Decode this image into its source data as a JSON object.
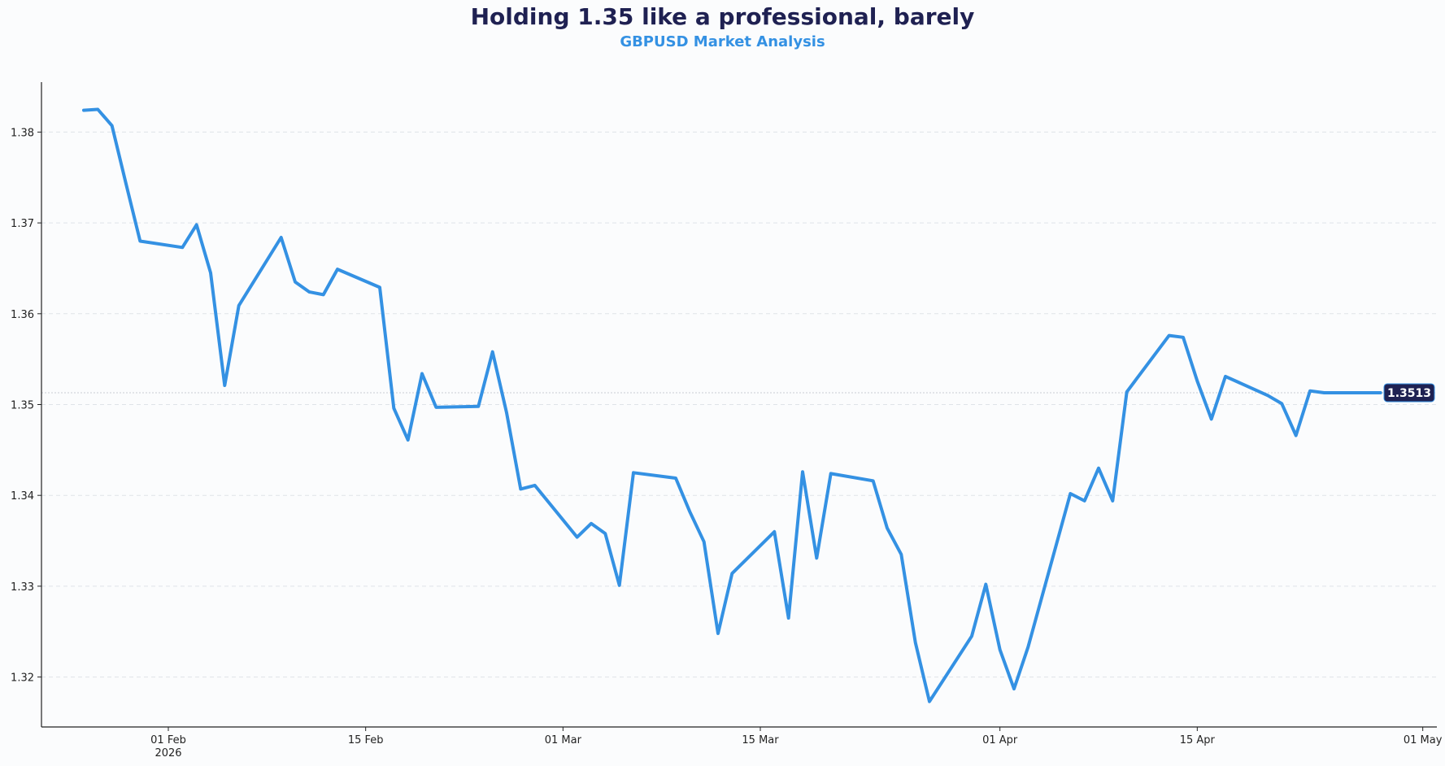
{
  "chart_data": {
    "type": "line",
    "title": "Holding 1.35 like a professional, barely",
    "subtitle": "GBPUSD Market Analysis",
    "xlabel": "",
    "ylabel": "",
    "grid": "horizontal dashed",
    "ylim": [
      1.3145,
      1.3855
    ],
    "xlim": [
      "2026-01-23",
      "2026-05-02"
    ],
    "y_ticks": [
      {
        "value": 1.32,
        "label": "1.32"
      },
      {
        "value": 1.33,
        "label": "1.33"
      },
      {
        "value": 1.34,
        "label": "1.34"
      },
      {
        "value": 1.35,
        "label": "1.35"
      },
      {
        "value": 1.36,
        "label": "1.36"
      },
      {
        "value": 1.37,
        "label": "1.37"
      },
      {
        "value": 1.38,
        "label": "1.38"
      }
    ],
    "x_ticks": [
      {
        "date": "2026-02-01",
        "label": "01 Feb",
        "sublabel": "2026"
      },
      {
        "date": "2026-02-15",
        "label": "15 Feb",
        "sublabel": ""
      },
      {
        "date": "2026-03-01",
        "label": "01 Mar",
        "sublabel": ""
      },
      {
        "date": "2026-03-15",
        "label": "15 Mar",
        "sublabel": ""
      },
      {
        "date": "2026-04-01",
        "label": "01 Apr",
        "sublabel": ""
      },
      {
        "date": "2026-04-15",
        "label": "15 Apr",
        "sublabel": ""
      },
      {
        "date": "2026-05-01",
        "label": "01 May",
        "sublabel": ""
      }
    ],
    "series": [
      {
        "name": "GBPUSD",
        "color": "#3491e3",
        "x": [
          "2026-01-26",
          "2026-01-27",
          "2026-01-28",
          "2026-01-29",
          "2026-01-30",
          "2026-02-02",
          "2026-02-03",
          "2026-02-04",
          "2026-02-05",
          "2026-02-06",
          "2026-02-09",
          "2026-02-10",
          "2026-02-11",
          "2026-02-12",
          "2026-02-13",
          "2026-02-16",
          "2026-02-17",
          "2026-02-18",
          "2026-02-19",
          "2026-02-20",
          "2026-02-23",
          "2026-02-24",
          "2026-02-25",
          "2026-02-26",
          "2026-02-27",
          "2026-03-02",
          "2026-03-03",
          "2026-03-04",
          "2026-03-05",
          "2026-03-06",
          "2026-03-09",
          "2026-03-10",
          "2026-03-11",
          "2026-03-12",
          "2026-03-13",
          "2026-03-16",
          "2026-03-17",
          "2026-03-18",
          "2026-03-19",
          "2026-03-20",
          "2026-03-23",
          "2026-03-24",
          "2026-03-25",
          "2026-03-26",
          "2026-03-27",
          "2026-03-30",
          "2026-03-31",
          "2026-04-01",
          "2026-04-02",
          "2026-04-03",
          "2026-04-06",
          "2026-04-07",
          "2026-04-08",
          "2026-04-09",
          "2026-04-10",
          "2026-04-13",
          "2026-04-14",
          "2026-04-15",
          "2026-04-16",
          "2026-04-17",
          "2026-04-20",
          "2026-04-21",
          "2026-04-22",
          "2026-04-23",
          "2026-04-24",
          "2026-04-27",
          "2026-04-28"
        ],
        "values": [
          1.3824,
          1.3825,
          1.3807,
          1.3743,
          1.368,
          1.3673,
          1.3698,
          1.3645,
          1.3521,
          1.3609,
          1.3684,
          1.3635,
          1.3624,
          1.3621,
          1.3649,
          1.3629,
          1.3496,
          1.3461,
          1.3534,
          1.3497,
          1.3498,
          1.3558,
          1.3491,
          1.3407,
          1.3411,
          1.3354,
          1.3369,
          1.3358,
          1.3301,
          1.3425,
          1.3419,
          1.3382,
          1.3349,
          1.3248,
          1.3314,
          1.336,
          1.3265,
          1.3426,
          1.3331,
          1.3424,
          1.3416,
          1.3364,
          1.3335,
          1.3238,
          1.3173,
          1.3245,
          1.3302,
          1.323,
          1.3187,
          1.3233,
          1.3402,
          1.3394,
          1.343,
          1.3394,
          1.3514,
          1.3576,
          1.3574,
          1.3526,
          1.3484,
          1.3531,
          1.351,
          1.3501,
          1.3466,
          1.3515,
          1.3513,
          1.3513,
          1.3513
        ]
      }
    ],
    "last_value": {
      "value": 1.3513,
      "label": "1.3513"
    }
  }
}
